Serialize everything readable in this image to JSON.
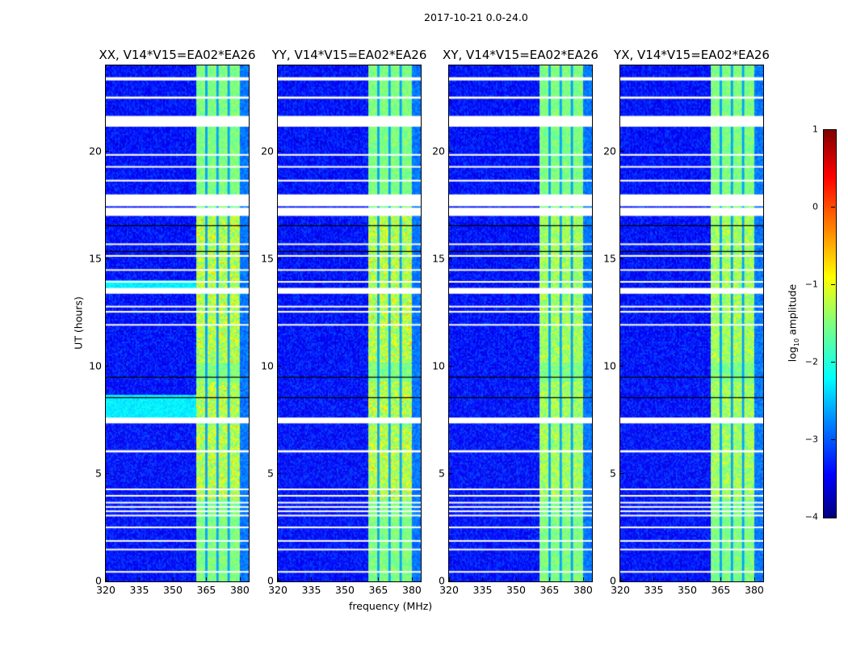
{
  "chart_data": {
    "type": "heatmap",
    "title": "2017-10-21 0.0-24.0",
    "xlabel": "frequency (MHz)",
    "ylabel": "UT (hours)",
    "xlim": [
      320,
      384
    ],
    "ylim": [
      0,
      24
    ],
    "xticks": [
      "320",
      "335",
      "350",
      "365",
      "380"
    ],
    "yticks": [
      "0",
      "5",
      "10",
      "15",
      "20"
    ],
    "panels": [
      {
        "title": "XX, V14*V15=EA02*EA26",
        "pol": "XX"
      },
      {
        "title": "YY, V14*V15=EA02*EA26",
        "pol": "YY"
      },
      {
        "title": "XY, V14*V15=EA02*EA26",
        "pol": "XY"
      },
      {
        "title": "YX, V14*V15=EA02*EA26",
        "pol": "YX"
      }
    ],
    "background_level": -3.3,
    "band_mhz": [
      360.5,
      380
    ],
    "band_level": -1.5,
    "band_hot_hours": [
      [
        3.8,
        7.3
      ],
      [
        7.6,
        9.3
      ],
      [
        10.2,
        17.1
      ]
    ],
    "band_dark_channels_mhz": [
      365,
      370,
      375
    ],
    "flagged_hours": [
      [
        23.3,
        23.45
      ],
      [
        22.45,
        22.55
      ],
      [
        21.15,
        21.65
      ],
      [
        19.8,
        19.88
      ],
      [
        19.25,
        19.32
      ],
      [
        18.6,
        18.68
      ],
      [
        17.45,
        18.0
      ],
      [
        17.0,
        17.38
      ],
      [
        15.65,
        15.72
      ],
      [
        15.1,
        15.18
      ],
      [
        14.45,
        14.52
      ],
      [
        13.9,
        13.97
      ],
      [
        13.38,
        13.65
      ],
      [
        12.75,
        12.82
      ],
      [
        12.5,
        12.58
      ],
      [
        11.9,
        11.97
      ],
      [
        7.35,
        7.62
      ],
      [
        6.0,
        6.1
      ],
      [
        4.25,
        4.32
      ],
      [
        3.95,
        4.02
      ],
      [
        3.65,
        3.7
      ],
      [
        3.45,
        3.5
      ],
      [
        3.25,
        3.3
      ],
      [
        3.05,
        3.1
      ],
      [
        2.5,
        2.55
      ],
      [
        1.85,
        1.92
      ],
      [
        1.45,
        1.52
      ],
      [
        0.42,
        0.48
      ]
    ],
    "dark_lines_hours": [
      16.55,
      15.35,
      9.5,
      8.55
    ],
    "colorbar": {
      "label": "log10 amplitude",
      "range": [
        -4,
        1
      ],
      "ticks": [
        "1",
        "0",
        "−1",
        "−2",
        "−3",
        "−4"
      ]
    }
  }
}
